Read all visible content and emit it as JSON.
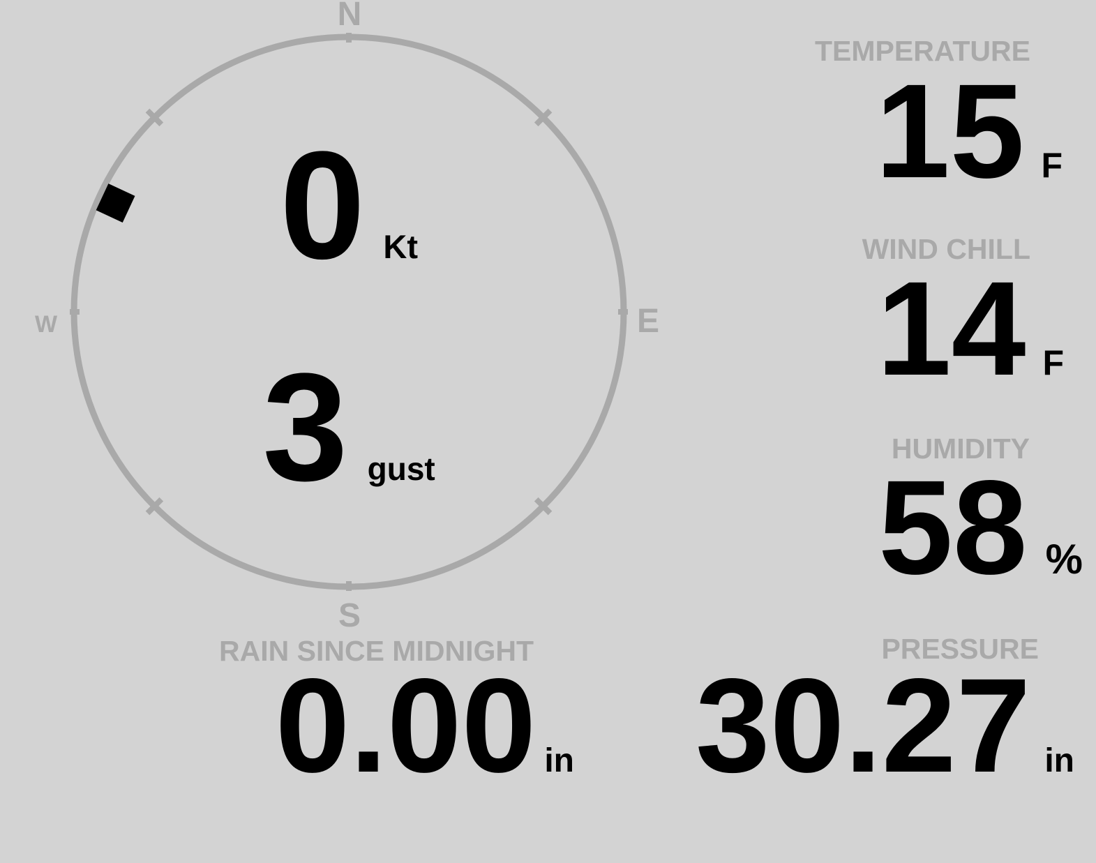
{
  "colors": {
    "background": "#d3d3d3",
    "muted": "#a9a9a9",
    "value": "#000000"
  },
  "compass": {
    "cardinal_labels": {
      "north": "N",
      "east": "E",
      "south": "S",
      "west": "W"
    },
    "wind_speed": {
      "value": "0",
      "unit": "Kt"
    },
    "wind_gust": {
      "value": "3",
      "unit": "gust"
    },
    "direction_marker": {
      "bearing_deg": 295
    }
  },
  "metrics": {
    "temperature": {
      "label": "TEMPERATURE",
      "value": "15",
      "unit": "F"
    },
    "wind_chill": {
      "label": "WIND CHILL",
      "value": "14",
      "unit": "F"
    },
    "humidity": {
      "label": "HUMIDITY",
      "value": "58",
      "unit": "%"
    },
    "rain_since_midnight": {
      "label": "RAIN SINCE MIDNIGHT",
      "value": "0.00",
      "unit": "in"
    },
    "pressure": {
      "label": "PRESSURE",
      "value": "30.27",
      "unit": "in"
    }
  }
}
